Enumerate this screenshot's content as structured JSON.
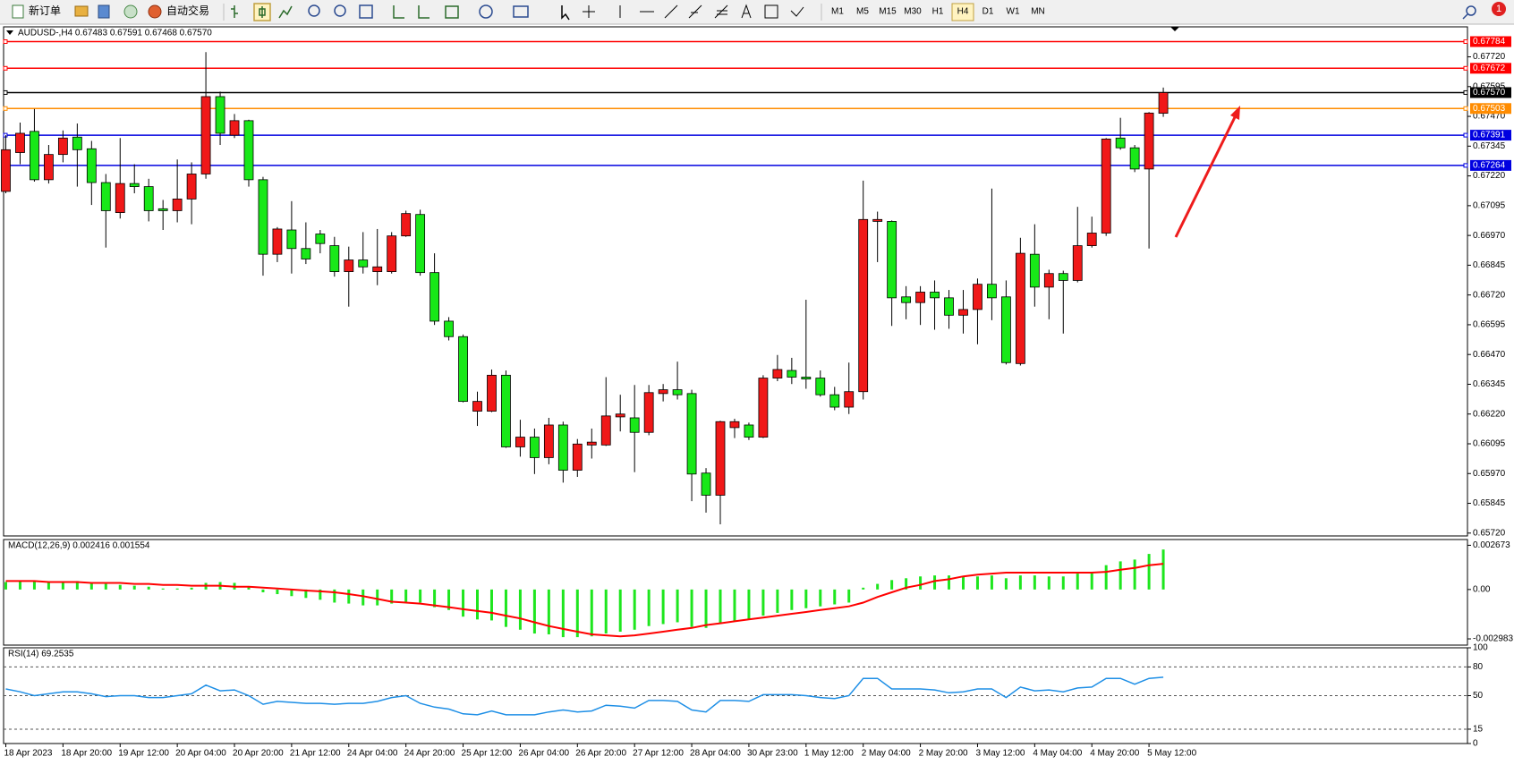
{
  "toolbar": {
    "new_order": "新订单",
    "auto_trading": "自动交易",
    "timeframes": [
      "M1",
      "M5",
      "M15",
      "M30",
      "H1",
      "H4",
      "D1",
      "W1",
      "MN"
    ],
    "active_timeframe": "H4",
    "notifications": "1"
  },
  "chart_data": [
    {
      "type": "candlestick",
      "title": "AUDUSD-,H4  0.67483 0.67591 0.67468 0.67570",
      "up_color": "#f01818",
      "down_color": "#18e818",
      "categories": [
        "18 Apr 2023",
        null,
        null,
        null,
        "18 Apr 20:00",
        null,
        null,
        null,
        "19 Apr 12:00",
        null,
        null,
        null,
        "20 Apr 04:00",
        null,
        null,
        null,
        "20 Apr 20:00",
        null,
        null,
        null,
        "21 Apr 12:00",
        null,
        null,
        null,
        "24 Apr 04:00",
        null,
        null,
        null,
        "24 Apr 20:00",
        null,
        null,
        null,
        "25 Apr 12:00",
        null,
        null,
        null,
        "26 Apr 04:00",
        null,
        null,
        null,
        "26 Apr 20:00",
        null,
        null,
        null,
        "27 Apr 12:00",
        null,
        null,
        null,
        "28 Apr 04:00",
        null,
        null,
        null,
        "30 Apr 23:00",
        null,
        null,
        null,
        "1 May 12:00",
        null,
        null,
        null,
        "2 May 04:00",
        null,
        null,
        null,
        "2 May 20:00",
        null,
        null,
        null,
        "3 May 12:00",
        null,
        null,
        null,
        "4 May 04:00",
        null,
        null,
        null,
        "4 May 20:00",
        null,
        null,
        null,
        "5 May 12:00",
        null
      ],
      "open": [
        0.67155,
        0.67318,
        0.67407,
        0.67204,
        0.6731,
        0.67383,
        0.67334,
        0.67192,
        0.67066,
        0.67188,
        0.67175,
        0.67082,
        0.67074,
        0.67123,
        0.67228,
        0.67553,
        0.67391,
        0.67452,
        0.67204,
        0.66891,
        0.66993,
        0.66915,
        0.66976,
        0.66927,
        0.66818,
        0.66867,
        0.66818,
        0.66818,
        0.66968,
        0.67058,
        0.66814,
        0.6661,
        0.66545,
        0.66232,
        0.66232,
        0.66383,
        0.66082,
        0.66123,
        0.66037,
        0.66174,
        0.65984,
        0.6609,
        0.6609,
        0.66208,
        0.66204,
        0.66143,
        0.66306,
        0.66322,
        0.66306,
        0.65972,
        0.65879,
        0.66163,
        0.66174,
        0.66123,
        0.66371,
        0.66403,
        0.66375,
        0.66371,
        0.66301,
        0.66249,
        0.66314,
        0.67029,
        0.67029,
        0.66712,
        0.66688,
        0.66732,
        0.66708,
        0.66635,
        0.66659,
        0.66765,
        0.66712,
        0.66432,
        0.66891,
        0.66753,
        0.6681,
        0.66781,
        0.66927,
        0.6698,
        0.67379,
        0.67338,
        0.67249,
        0.67483
      ],
      "high": [
        0.67391,
        0.67444,
        0.67501,
        0.6735,
        0.67411,
        0.6744,
        0.67367,
        0.67228,
        0.67379,
        0.67269,
        0.67208,
        0.67119,
        0.67289,
        0.67277,
        0.6774,
        0.67574,
        0.6748,
        0.67456,
        0.67216,
        0.67005,
        0.67114,
        0.67025,
        0.66993,
        0.66964,
        0.66923,
        0.66984,
        0.66997,
        0.66984,
        0.67074,
        0.67078,
        0.66895,
        0.66627,
        0.66554,
        0.66314,
        0.66407,
        0.66403,
        0.66196,
        0.66159,
        0.66204,
        0.66188,
        0.66115,
        0.66159,
        0.66375,
        0.66301,
        0.66342,
        0.66342,
        0.66346,
        0.6644,
        0.66322,
        0.65993,
        0.66192,
        0.662,
        0.66184,
        0.66383,
        0.66468,
        0.66456,
        0.667,
        0.66403,
        0.66334,
        0.66436,
        0.672,
        0.6707,
        0.67033,
        0.66757,
        0.66757,
        0.66781,
        0.66741,
        0.66741,
        0.66789,
        0.67167,
        0.66781,
        0.6696,
        0.67017,
        0.66826,
        0.66822,
        0.6709,
        0.67049,
        0.67379,
        0.67464,
        0.6735,
        0.67488,
        0.67591
      ],
      "low": [
        0.67147,
        0.67269,
        0.67196,
        0.67188,
        0.67277,
        0.67175,
        0.67098,
        0.66919,
        0.67041,
        0.67147,
        0.67029,
        0.66993,
        0.67025,
        0.67017,
        0.67208,
        0.6735,
        0.67379,
        0.67175,
        0.66801,
        0.66858,
        0.6681,
        0.6685,
        0.66895,
        0.66797,
        0.66671,
        0.6681,
        0.66761,
        0.6681,
        0.66964,
        0.66801,
        0.66594,
        0.66529,
        0.66269,
        0.6617,
        0.66228,
        0.66078,
        0.66041,
        0.65968,
        0.66009,
        0.65932,
        0.65956,
        0.66033,
        0.66086,
        0.66147,
        0.65976,
        0.66131,
        0.66273,
        0.66281,
        0.65854,
        0.65806,
        0.65757,
        0.66119,
        0.66111,
        0.66119,
        0.66358,
        0.66346,
        0.66326,
        0.66293,
        0.66236,
        0.6622,
        0.66281,
        0.66858,
        0.6659,
        0.66618,
        0.66594,
        0.66574,
        0.66578,
        0.66558,
        0.66513,
        0.66614,
        0.66428,
        0.66424,
        0.66671,
        0.66618,
        0.66558,
        0.66773,
        0.66919,
        0.66968,
        0.6733,
        0.67236,
        0.66915,
        0.67468
      ],
      "close": [
        0.6733,
        0.67399,
        0.67204,
        0.6731,
        0.67379,
        0.6733,
        0.67192,
        0.67074,
        0.67188,
        0.67175,
        0.67074,
        0.67074,
        0.67123,
        0.67228,
        0.67553,
        0.67399,
        0.67452,
        0.67204,
        0.66891,
        0.66997,
        0.66915,
        0.66871,
        0.66936,
        0.66818,
        0.66867,
        0.66838,
        0.66838,
        0.66968,
        0.67062,
        0.66814,
        0.6661,
        0.66545,
        0.66273,
        0.66273,
        0.66383,
        0.66082,
        0.66123,
        0.66037,
        0.66174,
        0.65984,
        0.66094,
        0.66102,
        0.66212,
        0.6622,
        0.66143,
        0.6631,
        0.66322,
        0.66301,
        0.65968,
        0.65879,
        0.66188,
        0.66188,
        0.66123,
        0.66371,
        0.66407,
        0.66375,
        0.66367,
        0.66301,
        0.66249,
        0.66314,
        0.67037,
        0.67037,
        0.66708,
        0.66688,
        0.66732,
        0.66708,
        0.66635,
        0.66659,
        0.66765,
        0.66708,
        0.66436,
        0.66895,
        0.66753,
        0.6681,
        0.66781,
        0.66927,
        0.6698,
        0.67375,
        0.67338,
        0.67249,
        0.67484,
        0.6757
      ],
      "ylim": [
        0.65708,
        0.67846
      ],
      "yticks": [
        {
          "value": 0.6772,
          "label": "0.67720"
        },
        0.67595,
        {
          "value": 0.6747,
          "label": "0.67470"
        },
        0.67345,
        {
          "value": 0.6722,
          "label": "0.67220"
        },
        0.67095,
        {
          "value": 0.6697,
          "label": "0.66970"
        },
        0.66845,
        {
          "value": 0.6672,
          "label": "0.66720"
        },
        0.66595,
        {
          "value": 0.6647,
          "label": "0.66470"
        },
        0.66345,
        {
          "value": 0.6622,
          "label": "0.66220"
        },
        0.66095,
        {
          "value": 0.6597,
          "label": "0.65970"
        },
        0.65845,
        {
          "value": 0.6572,
          "label": "0.65720"
        }
      ],
      "hlines": [
        {
          "value": 0.67784,
          "label": "0.67784",
          "color": "#ff0000"
        },
        {
          "value": 0.67672,
          "label": "0.67672",
          "color": "#ff0000"
        },
        {
          "value": 0.6757,
          "label": "0.67570",
          "color": "#000000"
        },
        {
          "value": 0.67503,
          "label": "0.67503",
          "color": "#ff8c00"
        },
        {
          "value": 0.67391,
          "label": "0.67391",
          "color": "#0000e0"
        },
        {
          "value": 0.67264,
          "label": "0.67264",
          "color": "#0000e0"
        }
      ]
    },
    {
      "type": "macd",
      "title": "MACD(12,26,9) 0.002416 0.001554",
      "series": [
        {
          "style": "histogram",
          "color": "#1ee61e",
          "values": [
            0.00045,
            0.00051,
            0.00051,
            0.00045,
            0.00045,
            0.00051,
            0.00045,
            0.00034,
            0.00028,
            0.00023,
            0.00017,
            6e-05,
            6e-05,
            0.00011,
            0.0004,
            0.00045,
            0.0004,
            0.00017,
            -0.00017,
            -0.00028,
            -0.0004,
            -0.00051,
            -0.00062,
            -0.00079,
            -0.00085,
            -0.00096,
            -0.00096,
            -0.00085,
            -0.00074,
            -0.00079,
            -0.00107,
            -0.00124,
            -0.00164,
            -0.00181,
            -0.00187,
            -0.00226,
            -0.00243,
            -0.00266,
            -0.00271,
            -0.00288,
            -0.00288,
            -0.00283,
            -0.00266,
            -0.00255,
            -0.00243,
            -0.00221,
            -0.00209,
            -0.00198,
            -0.00226,
            -0.00232,
            -0.00209,
            -0.00192,
            -0.00181,
            -0.00158,
            -0.00141,
            -0.00124,
            -0.00113,
            -0.00102,
            -0.0009,
            -0.00079,
            0.00011,
            0.00034,
            0.00057,
            0.00068,
            0.00079,
            0.00085,
            0.00085,
            0.00079,
            0.00079,
            0.00085,
            0.00068,
            0.00085,
            0.00085,
            0.00079,
            0.00079,
            0.00096,
            0.00102,
            0.00147,
            0.0017,
            0.00181,
            0.00215,
            0.002416
          ]
        },
        {
          "style": "line",
          "color": "#ff0000",
          "values": [
            0.00051,
            0.00051,
            0.00051,
            0.00045,
            0.00045,
            0.00045,
            0.0004,
            0.0004,
            0.0004,
            0.00034,
            0.00034,
            0.00028,
            0.00028,
            0.00023,
            0.00023,
            0.00023,
            0.00017,
            0.00017,
            0.00011,
            6e-05,
            0,
            -6e-05,
            -0.00011,
            -0.00017,
            -0.00028,
            -0.0004,
            -0.00057,
            -0.00074,
            -0.00079,
            -0.00085,
            -0.00096,
            -0.00107,
            -0.00119,
            -0.0013,
            -0.00141,
            -0.00158,
            -0.00175,
            -0.00198,
            -0.00221,
            -0.00238,
            -0.00255,
            -0.00271,
            -0.00277,
            -0.00283,
            -0.00277,
            -0.00266,
            -0.00255,
            -0.00243,
            -0.00232,
            -0.00215,
            -0.00204,
            -0.00192,
            -0.00181,
            -0.0017,
            -0.00158,
            -0.00147,
            -0.00136,
            -0.00124,
            -0.00113,
            -0.00102,
            -0.00079,
            -0.00045,
            -0.00017,
            0.00011,
            0.00028,
            0.00051,
            0.00062,
            0.00079,
            0.0009,
            0.00096,
            0.00102,
            0.00102,
            0.00102,
            0.00102,
            0.00102,
            0.00102,
            0.00102,
            0.00107,
            0.00119,
            0.0013,
            0.00147,
            0.001554
          ]
        }
      ],
      "ylim": [
        -0.00336,
        0.00302
      ],
      "yticks": [
        0.002673,
        {
          "value": 0,
          "label": "0.00"
        },
        -0.002983
      ]
    },
    {
      "type": "line",
      "title": "RSI(14) 69.2535",
      "color": "#1e8fe6",
      "values": [
        57,
        54,
        50,
        52,
        54,
        54,
        52,
        49,
        50,
        50,
        48,
        48,
        50,
        52,
        61,
        55,
        56,
        50,
        41,
        44,
        43,
        42,
        42,
        41,
        42,
        42,
        44,
        48,
        50,
        42,
        38,
        36,
        31,
        30,
        34,
        30,
        30,
        30,
        33,
        35,
        33,
        34,
        40,
        39,
        37,
        45,
        45,
        44,
        35,
        33,
        45,
        45,
        44,
        51,
        51,
        51,
        50,
        48,
        47,
        50,
        68,
        68,
        57,
        57,
        57,
        56,
        53,
        54,
        57,
        57,
        48,
        59,
        55,
        56,
        54,
        58,
        59,
        68,
        68,
        62,
        68,
        69.2535
      ],
      "ylim": [
        0,
        100
      ],
      "yticks": [
        100,
        80,
        50,
        15,
        0
      ],
      "levels": [
        80,
        50,
        15
      ]
    }
  ]
}
